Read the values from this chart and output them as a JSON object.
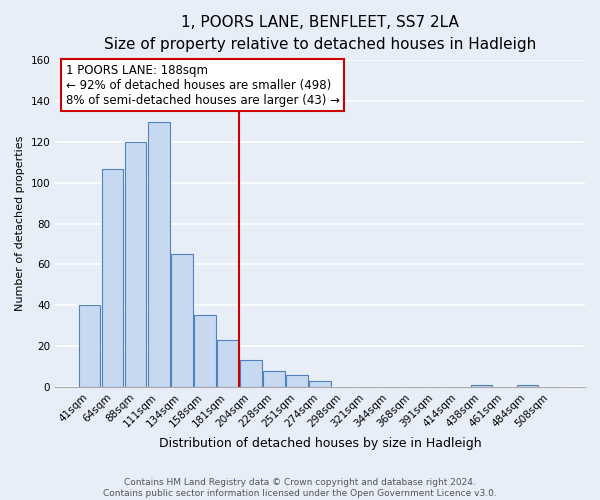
{
  "title": "1, POORS LANE, BENFLEET, SS7 2LA",
  "subtitle": "Size of property relative to detached houses in Hadleigh",
  "xlabel": "Distribution of detached houses by size in Hadleigh",
  "ylabel": "Number of detached properties",
  "bar_labels": [
    "41sqm",
    "64sqm",
    "88sqm",
    "111sqm",
    "134sqm",
    "158sqm",
    "181sqm",
    "204sqm",
    "228sqm",
    "251sqm",
    "274sqm",
    "298sqm",
    "321sqm",
    "344sqm",
    "368sqm",
    "391sqm",
    "414sqm",
    "438sqm",
    "461sqm",
    "484sqm",
    "508sqm"
  ],
  "bar_heights": [
    40,
    107,
    120,
    130,
    65,
    35,
    23,
    13,
    8,
    6,
    3,
    0,
    0,
    0,
    0,
    0,
    0,
    1,
    0,
    1,
    0
  ],
  "bar_color": "#c6d9f0",
  "bar_edge_color": "#4f81bd",
  "vline_x_index": 6,
  "vline_color": "#cc0000",
  "annotation_line1": "1 POORS LANE: 188sqm",
  "annotation_line2": "← 92% of detached houses are smaller (498)",
  "annotation_line3": "8% of semi-detached houses are larger (43) →",
  "annotation_box_edge_color": "#cc0000",
  "annotation_box_facecolor": "#ffffff",
  "ylim": [
    0,
    160
  ],
  "yticks": [
    0,
    20,
    40,
    60,
    80,
    100,
    120,
    140,
    160
  ],
  "background_color": "#e8eef8",
  "grid_color": "#ffffff",
  "footer_text": "Contains HM Land Registry data © Crown copyright and database right 2024.\nContains public sector information licensed under the Open Government Licence v3.0.",
  "title_fontsize": 11,
  "subtitle_fontsize": 9.5,
  "xlabel_fontsize": 9,
  "ylabel_fontsize": 8,
  "tick_fontsize": 7.5,
  "annotation_fontsize": 8.5,
  "footer_fontsize": 6.5
}
